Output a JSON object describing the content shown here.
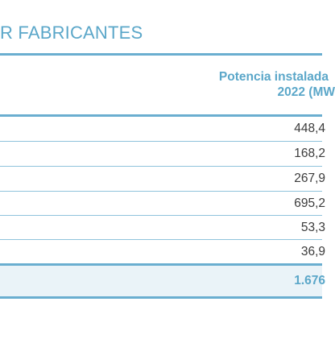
{
  "title": "R FABRICANTES",
  "table": {
    "header": {
      "line1": "Potencia instalada",
      "line2": "2022 (MW"
    },
    "rows": [
      {
        "value": "448,4"
      },
      {
        "value": "168,2"
      },
      {
        "value": "267,9"
      },
      {
        "value": "695,2"
      },
      {
        "value": "53,3"
      },
      {
        "value": "36,9"
      }
    ],
    "total": {
      "value": "1.676"
    }
  }
}
